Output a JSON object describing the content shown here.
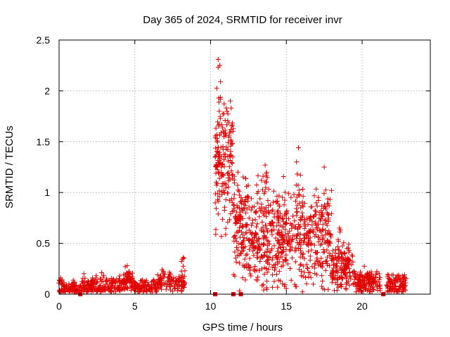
{
  "chart_data": {
    "type": "scatter",
    "title": "Day 365 of 2024, SRMTID for receiver invr",
    "xlabel": "GPS time / hours",
    "ylabel": "SRMTID / TECUs",
    "xlim": [
      0,
      24.5
    ],
    "ylim": [
      0,
      2.5
    ],
    "xticks": [
      0,
      5,
      10,
      15,
      20
    ],
    "yticks": [
      0,
      0.5,
      1,
      1.5,
      2,
      2.5
    ],
    "ytick_labels": [
      "0",
      "0.5",
      "1",
      "1.5",
      "2",
      "2.5"
    ],
    "grid": true,
    "marker": "plus",
    "color": "#e00000",
    "gap_markers_x": [
      1.4,
      10.3,
      11.5,
      12.0,
      21.4
    ],
    "segments": [
      {
        "x0": 0.0,
        "x1": 1.5,
        "base": 0.05,
        "spread": 0.05,
        "n": 90,
        "peak_x": [
          0.1,
          1.0
        ],
        "peak_y": [
          0.16,
          0.12
        ]
      },
      {
        "x0": 1.5,
        "x1": 4.0,
        "base": 0.08,
        "spread": 0.07,
        "n": 160,
        "peak_x": [
          2.2,
          3.6
        ],
        "peak_y": [
          0.16,
          0.15
        ]
      },
      {
        "x0": 4.0,
        "x1": 5.0,
        "base": 0.12,
        "spread": 0.07,
        "n": 80,
        "peak_x": [
          4.5,
          4.6
        ],
        "peak_y": [
          0.28,
          0.22
        ]
      },
      {
        "x0": 5.0,
        "x1": 6.5,
        "base": 0.07,
        "spread": 0.05,
        "n": 90,
        "peak_x": [
          5.5
        ],
        "peak_y": [
          0.14
        ]
      },
      {
        "x0": 6.5,
        "x1": 8.3,
        "base": 0.11,
        "spread": 0.07,
        "n": 110,
        "peak_x": [
          6.8,
          8.2
        ],
        "peak_y": [
          0.24,
          0.36
        ]
      },
      {
        "x0": 10.3,
        "x1": 11.5,
        "base": 1.3,
        "spread": 0.45,
        "n": 160,
        "peak_x": [
          10.5,
          10.6
        ],
        "peak_y": [
          2.31,
          2.25
        ]
      },
      {
        "x0": 11.5,
        "x1": 12.5,
        "base": 0.65,
        "spread": 0.35,
        "n": 120,
        "peak_x": [
          11.3,
          11.8
        ],
        "peak_y": [
          1.9,
          1.2
        ]
      },
      {
        "x0": 12.5,
        "x1": 15.0,
        "base": 0.55,
        "spread": 0.35,
        "n": 300,
        "peak_x": [
          13.6,
          13.7
        ],
        "peak_y": [
          1.27,
          1.2
        ]
      },
      {
        "x0": 15.0,
        "x1": 18.0,
        "base": 0.55,
        "spread": 0.32,
        "n": 300,
        "peak_x": [
          15.8,
          17.5
        ],
        "peak_y": [
          1.44,
          1.25
        ]
      },
      {
        "x0": 18.0,
        "x1": 19.5,
        "base": 0.25,
        "spread": 0.18,
        "n": 140,
        "peak_x": [
          18.5,
          19.0
        ],
        "peak_y": [
          0.65,
          0.45
        ]
      },
      {
        "x0": 19.5,
        "x1": 21.2,
        "base": 0.12,
        "spread": 0.09,
        "n": 140,
        "peak_x": [
          20.6
        ],
        "peak_y": [
          0.22
        ]
      },
      {
        "x0": 21.6,
        "x1": 22.9,
        "base": 0.09,
        "spread": 0.07,
        "n": 100,
        "peak_x": [
          22.8
        ],
        "peak_y": [
          0.19
        ]
      }
    ]
  }
}
